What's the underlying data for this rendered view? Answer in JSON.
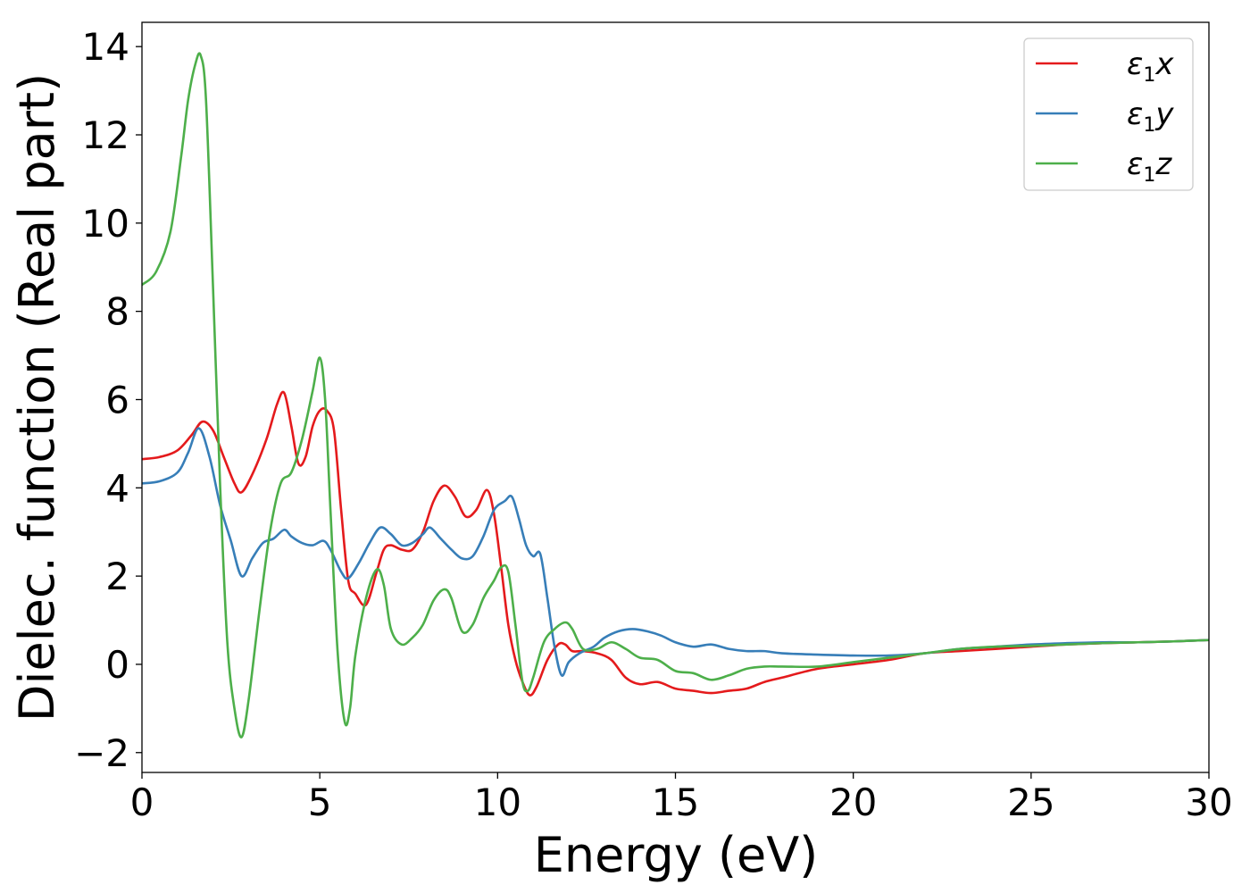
{
  "chart_data": {
    "type": "line",
    "title": "",
    "xlabel": "Energy (eV)",
    "ylabel": "Dielec. function (Real part)",
    "xlim": [
      0,
      30
    ],
    "ylim": [
      -2.45,
      14.55
    ],
    "xticks": [
      0,
      5,
      10,
      15,
      20,
      25,
      30
    ],
    "xtick_labels": [
      "0",
      "5",
      "10",
      "15",
      "20",
      "25",
      "30"
    ],
    "yticks": [
      -2,
      0,
      2,
      4,
      6,
      8,
      10,
      12,
      14
    ],
    "ytick_labels": [
      "−2",
      "0",
      "2",
      "4",
      "6",
      "8",
      "10",
      "12",
      "14"
    ],
    "grid": false,
    "legend": {
      "position": "top-right"
    },
    "series": [
      {
        "name": "ε1x",
        "legend_symbol": "ε",
        "legend_sub": "1",
        "legend_var": "x",
        "color": "#e41a1c",
        "x": [
          0,
          0.5,
          1.0,
          1.4,
          1.7,
          2.0,
          2.3,
          2.6,
          2.8,
          3.1,
          3.5,
          3.8,
          4.0,
          4.2,
          4.4,
          4.6,
          4.8,
          5.0,
          5.2,
          5.4,
          5.6,
          5.8,
          6.0,
          6.3,
          6.6,
          6.8,
          7.0,
          7.3,
          7.6,
          7.9,
          8.2,
          8.5,
          8.8,
          9.1,
          9.4,
          9.7,
          9.9,
          10.1,
          10.3,
          10.5,
          10.7,
          10.9,
          11.1,
          11.4,
          11.7,
          11.9,
          12.1,
          12.4,
          12.8,
          13.2,
          13.6,
          14.0,
          14.5,
          15.0,
          15.5,
          16.0,
          16.5,
          17.0,
          17.5,
          18.0,
          19.0,
          20.0,
          21.0,
          22.0,
          23.0,
          24.0,
          25.0,
          26.0,
          27.0,
          28.0,
          29.0,
          30.0
        ],
        "y": [
          4.65,
          4.7,
          4.85,
          5.2,
          5.5,
          5.3,
          4.7,
          4.1,
          3.9,
          4.3,
          5.1,
          5.9,
          6.15,
          5.4,
          4.55,
          4.7,
          5.4,
          5.75,
          5.75,
          5.3,
          3.5,
          1.9,
          1.6,
          1.35,
          2.1,
          2.6,
          2.7,
          2.6,
          2.6,
          3.0,
          3.7,
          4.05,
          3.8,
          3.35,
          3.5,
          3.95,
          3.4,
          2.2,
          0.9,
          0.1,
          -0.4,
          -0.7,
          -0.5,
          0.1,
          0.45,
          0.45,
          0.3,
          0.3,
          0.25,
          0.1,
          -0.3,
          -0.45,
          -0.4,
          -0.55,
          -0.6,
          -0.65,
          -0.6,
          -0.55,
          -0.4,
          -0.3,
          -0.1,
          0.0,
          0.1,
          0.25,
          0.3,
          0.35,
          0.4,
          0.45,
          0.48,
          0.5,
          0.52,
          0.55
        ]
      },
      {
        "name": "ε1y",
        "legend_symbol": "ε",
        "legend_sub": "1",
        "legend_var": "y",
        "color": "#377eb8",
        "x": [
          0,
          0.5,
          1.0,
          1.3,
          1.6,
          1.9,
          2.2,
          2.5,
          2.8,
          3.1,
          3.4,
          3.7,
          4.0,
          4.2,
          4.5,
          4.8,
          5.1,
          5.3,
          5.6,
          5.8,
          6.1,
          6.4,
          6.7,
          7.0,
          7.3,
          7.6,
          7.9,
          8.1,
          8.4,
          8.7,
          9.0,
          9.3,
          9.6,
          9.9,
          10.2,
          10.4,
          10.6,
          10.8,
          11.0,
          11.2,
          11.4,
          11.6,
          11.8,
          12.0,
          12.3,
          12.7,
          13.0,
          13.4,
          13.8,
          14.2,
          14.6,
          15.0,
          15.5,
          16.0,
          16.5,
          17.0,
          17.5,
          18.0,
          19.0,
          20.0,
          21.0,
          22.0,
          23.0,
          24.0,
          25.0,
          26.0,
          27.0,
          28.0,
          29.0,
          30.0
        ],
        "y": [
          4.1,
          4.15,
          4.35,
          4.8,
          5.35,
          4.7,
          3.6,
          2.8,
          2.0,
          2.4,
          2.75,
          2.85,
          3.05,
          2.9,
          2.75,
          2.7,
          2.8,
          2.6,
          2.1,
          1.95,
          2.3,
          2.75,
          3.1,
          2.95,
          2.7,
          2.75,
          2.95,
          3.1,
          2.85,
          2.6,
          2.4,
          2.45,
          2.9,
          3.5,
          3.7,
          3.8,
          3.3,
          2.7,
          2.45,
          2.5,
          1.5,
          0.4,
          -0.25,
          0.05,
          0.25,
          0.4,
          0.6,
          0.75,
          0.8,
          0.75,
          0.65,
          0.5,
          0.4,
          0.45,
          0.35,
          0.3,
          0.3,
          0.25,
          0.22,
          0.2,
          0.2,
          0.25,
          0.35,
          0.4,
          0.45,
          0.48,
          0.5,
          0.5,
          0.52,
          0.55
        ]
      },
      {
        "name": "ε1z",
        "legend_symbol": "ε",
        "legend_sub": "1",
        "legend_var": "z",
        "color": "#4daf4a",
        "x": [
          0,
          0.4,
          0.8,
          1.1,
          1.3,
          1.5,
          1.65,
          1.8,
          2.0,
          2.2,
          2.4,
          2.6,
          2.8,
          3.0,
          3.3,
          3.6,
          3.9,
          4.2,
          4.5,
          4.8,
          5.0,
          5.15,
          5.3,
          5.5,
          5.7,
          5.85,
          6.0,
          6.3,
          6.6,
          6.8,
          7.0,
          7.3,
          7.6,
          7.9,
          8.2,
          8.5,
          8.7,
          9.0,
          9.3,
          9.6,
          9.9,
          10.1,
          10.3,
          10.5,
          10.7,
          10.85,
          11.0,
          11.3,
          11.6,
          11.9,
          12.1,
          12.4,
          12.8,
          13.2,
          13.6,
          14.0,
          14.5,
          15.0,
          15.5,
          16.0,
          16.5,
          17.0,
          17.5,
          18.0,
          19.0,
          20.0,
          21.0,
          22.0,
          23.0,
          24.0,
          25.0,
          26.0,
          27.0,
          28.0,
          29.0,
          30.0
        ],
        "y": [
          8.6,
          8.9,
          9.8,
          11.5,
          12.8,
          13.6,
          13.8,
          12.8,
          8.5,
          4.0,
          0.5,
          -1.0,
          -1.65,
          -0.8,
          1.2,
          3.0,
          4.1,
          4.35,
          5.1,
          6.2,
          6.95,
          6.0,
          3.5,
          0.3,
          -1.3,
          -1.0,
          0.2,
          1.5,
          2.15,
          1.8,
          0.8,
          0.45,
          0.6,
          0.9,
          1.45,
          1.7,
          1.5,
          0.75,
          0.9,
          1.5,
          1.9,
          2.2,
          2.1,
          0.9,
          -0.4,
          -0.6,
          -0.3,
          0.5,
          0.8,
          0.95,
          0.8,
          0.35,
          0.35,
          0.5,
          0.35,
          0.15,
          0.1,
          -0.15,
          -0.2,
          -0.35,
          -0.25,
          -0.1,
          -0.05,
          -0.05,
          -0.05,
          0.05,
          0.15,
          0.25,
          0.35,
          0.4,
          0.42,
          0.45,
          0.48,
          0.5,
          0.52,
          0.55
        ]
      }
    ]
  }
}
